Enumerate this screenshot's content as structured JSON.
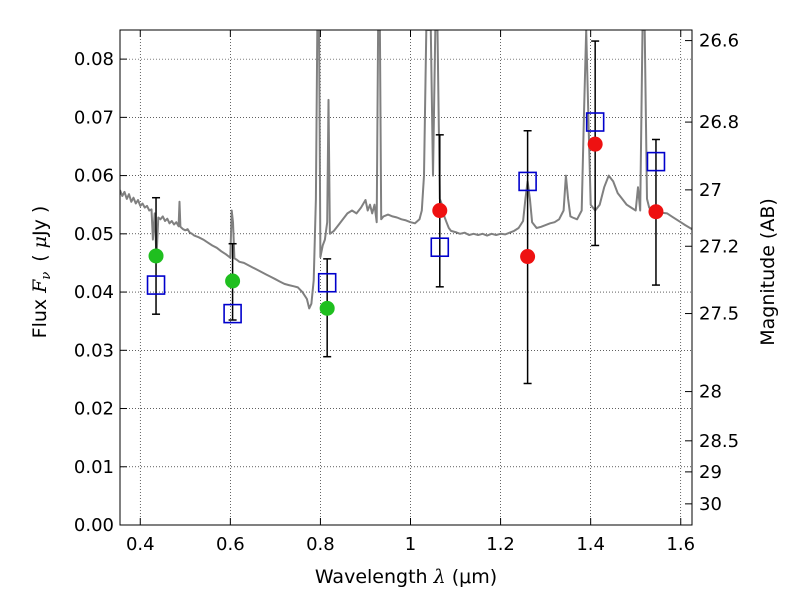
{
  "chart_data": {
    "type": "scatter",
    "xlabel": "Wavelength  λ (μm)",
    "xlabel_parts": {
      "prefix": "Wavelength  ",
      "symbol": "λ",
      "unit": " (μm)"
    },
    "ylabel": "Flux  Fν  ( μJy )",
    "ylabel_parts": {
      "prefix": "Flux  ",
      "symbol": "F",
      "subscript": "ν",
      "open": "(",
      "mu": "μ",
      "unit": "Jy )"
    },
    "y2label": "Magnitude (AB)",
    "xlim": [
      0.355,
      1.625
    ],
    "ylim": [
      0.0,
      0.085
    ],
    "x_ticks": [
      0.4,
      0.6,
      0.8,
      1.0,
      1.2,
      1.4,
      1.6
    ],
    "x_tick_labels": [
      "0.4",
      "0.6",
      "0.8",
      "1",
      "1.2",
      "1.4",
      "1.6"
    ],
    "y_ticks": [
      0.0,
      0.01,
      0.02,
      0.03,
      0.04,
      0.05,
      0.06,
      0.07,
      0.08
    ],
    "y_tick_labels": [
      "0.00",
      "0.01",
      "0.02",
      "0.03",
      "0.04",
      "0.05",
      "0.06",
      "0.07",
      "0.08"
    ],
    "y2_ticks": [
      {
        "mag": 26.6,
        "label": "26.6"
      },
      {
        "mag": 26.8,
        "label": "26.8"
      },
      {
        "mag": 27.0,
        "label": "27"
      },
      {
        "mag": 27.2,
        "label": "27.2"
      },
      {
        "mag": 27.5,
        "label": "27.5"
      },
      {
        "mag": 28.0,
        "label": "28"
      },
      {
        "mag": 28.5,
        "label": "28.5"
      },
      {
        "mag": 29.0,
        "label": "29"
      },
      {
        "mag": 30.0,
        "label": "30"
      }
    ],
    "grid": true,
    "series": [
      {
        "name": "model spectrum",
        "kind": "line",
        "color": "#808080",
        "points": [
          [
            0.355,
            0.0575
          ],
          [
            0.36,
            0.0565
          ],
          [
            0.365,
            0.0572
          ],
          [
            0.37,
            0.056
          ],
          [
            0.375,
            0.0568
          ],
          [
            0.38,
            0.0555
          ],
          [
            0.385,
            0.0562
          ],
          [
            0.39,
            0.0552
          ],
          [
            0.395,
            0.0558
          ],
          [
            0.4,
            0.0548
          ],
          [
            0.405,
            0.0552
          ],
          [
            0.41,
            0.0545
          ],
          [
            0.415,
            0.0548
          ],
          [
            0.42,
            0.054
          ],
          [
            0.425,
            0.0542
          ],
          [
            0.428,
            0.049
          ],
          [
            0.432,
            0.0535
          ],
          [
            0.436,
            0.046
          ],
          [
            0.44,
            0.0528
          ],
          [
            0.445,
            0.0525
          ],
          [
            0.45,
            0.053
          ],
          [
            0.455,
            0.0522
          ],
          [
            0.46,
            0.0526
          ],
          [
            0.465,
            0.0518
          ],
          [
            0.47,
            0.0522
          ],
          [
            0.475,
            0.0516
          ],
          [
            0.48,
            0.052
          ],
          [
            0.485,
            0.0513
          ],
          [
            0.487,
            0.0555
          ],
          [
            0.489,
            0.0512
          ],
          [
            0.495,
            0.0508
          ],
          [
            0.5,
            0.0506
          ],
          [
            0.505,
            0.0508
          ],
          [
            0.51,
            0.0502
          ],
          [
            0.515,
            0.05
          ],
          [
            0.52,
            0.0497
          ],
          [
            0.53,
            0.0494
          ],
          [
            0.54,
            0.049
          ],
          [
            0.55,
            0.0485
          ],
          [
            0.56,
            0.048
          ],
          [
            0.57,
            0.0476
          ],
          [
            0.58,
            0.047
          ],
          [
            0.59,
            0.0465
          ],
          [
            0.595,
            0.0462
          ],
          [
            0.6,
            0.0459
          ],
          [
            0.603,
            0.054
          ],
          [
            0.606,
            0.052
          ],
          [
            0.609,
            0.0458
          ],
          [
            0.615,
            0.0455
          ],
          [
            0.62,
            0.0452
          ],
          [
            0.63,
            0.045
          ],
          [
            0.64,
            0.0446
          ],
          [
            0.65,
            0.0442
          ],
          [
            0.66,
            0.0438
          ],
          [
            0.67,
            0.0434
          ],
          [
            0.68,
            0.043
          ],
          [
            0.69,
            0.0426
          ],
          [
            0.7,
            0.0422
          ],
          [
            0.71,
            0.0418
          ],
          [
            0.72,
            0.0414
          ],
          [
            0.73,
            0.0412
          ],
          [
            0.74,
            0.041
          ],
          [
            0.75,
            0.0408
          ],
          [
            0.76,
            0.04
          ],
          [
            0.77,
            0.0388
          ],
          [
            0.775,
            0.0372
          ],
          [
            0.78,
            0.038
          ],
          [
            0.785,
            0.042
          ],
          [
            0.79,
            0.056
          ],
          [
            0.793,
            0.085
          ],
          [
            0.797,
            0.085
          ],
          [
            0.8,
            0.046
          ],
          [
            0.805,
            0.048
          ],
          [
            0.81,
            0.049
          ],
          [
            0.815,
            0.052
          ],
          [
            0.818,
            0.073
          ],
          [
            0.821,
            0.05
          ],
          [
            0.83,
            0.0505
          ],
          [
            0.84,
            0.0515
          ],
          [
            0.85,
            0.0525
          ],
          [
            0.86,
            0.0535
          ],
          [
            0.87,
            0.054
          ],
          [
            0.88,
            0.0535
          ],
          [
            0.89,
            0.0545
          ],
          [
            0.9,
            0.0558
          ],
          [
            0.905,
            0.054
          ],
          [
            0.91,
            0.055
          ],
          [
            0.915,
            0.0535
          ],
          [
            0.92,
            0.055
          ],
          [
            0.925,
            0.052
          ],
          [
            0.928,
            0.085
          ],
          [
            0.932,
            0.085
          ],
          [
            0.935,
            0.0525
          ],
          [
            0.94,
            0.053
          ],
          [
            0.95,
            0.0533
          ],
          [
            0.96,
            0.053
          ],
          [
            0.97,
            0.0528
          ],
          [
            0.98,
            0.0525
          ],
          [
            0.99,
            0.0523
          ],
          [
            1.0,
            0.052
          ],
          [
            1.01,
            0.0518
          ],
          [
            1.02,
            0.0525
          ],
          [
            1.025,
            0.054
          ],
          [
            1.03,
            0.06
          ],
          [
            1.035,
            0.085
          ],
          [
            1.045,
            0.085
          ],
          [
            1.05,
            0.06
          ],
          [
            1.055,
            0.085
          ],
          [
            1.06,
            0.085
          ],
          [
            1.065,
            0.056
          ],
          [
            1.07,
            0.055
          ],
          [
            1.075,
            0.053
          ],
          [
            1.08,
            0.052
          ],
          [
            1.085,
            0.051
          ],
          [
            1.09,
            0.0505
          ],
          [
            1.1,
            0.0503
          ],
          [
            1.11,
            0.05
          ],
          [
            1.12,
            0.0502
          ],
          [
            1.13,
            0.0498
          ],
          [
            1.14,
            0.05
          ],
          [
            1.15,
            0.0498
          ],
          [
            1.16,
            0.05
          ],
          [
            1.17,
            0.0497
          ],
          [
            1.18,
            0.05
          ],
          [
            1.19,
            0.0498
          ],
          [
            1.2,
            0.05
          ],
          [
            1.21,
            0.0499
          ],
          [
            1.22,
            0.0502
          ],
          [
            1.23,
            0.0505
          ],
          [
            1.24,
            0.051
          ],
          [
            1.25,
            0.0522
          ],
          [
            1.255,
            0.056
          ],
          [
            1.26,
            0.059
          ],
          [
            1.265,
            0.056
          ],
          [
            1.27,
            0.052
          ],
          [
            1.28,
            0.051
          ],
          [
            1.29,
            0.0512
          ],
          [
            1.3,
            0.0515
          ],
          [
            1.31,
            0.0518
          ],
          [
            1.32,
            0.052
          ],
          [
            1.33,
            0.0525
          ],
          [
            1.34,
            0.054
          ],
          [
            1.345,
            0.06
          ],
          [
            1.35,
            0.056
          ],
          [
            1.355,
            0.053
          ],
          [
            1.36,
            0.0528
          ],
          [
            1.37,
            0.0525
          ],
          [
            1.38,
            0.054
          ],
          [
            1.385,
            0.07
          ],
          [
            1.39,
            0.085
          ],
          [
            1.395,
            0.07
          ],
          [
            1.4,
            0.055
          ],
          [
            1.41,
            0.054
          ],
          [
            1.42,
            0.055
          ],
          [
            1.43,
            0.058
          ],
          [
            1.44,
            0.06
          ],
          [
            1.45,
            0.059
          ],
          [
            1.46,
            0.057
          ],
          [
            1.47,
            0.056
          ],
          [
            1.48,
            0.055
          ],
          [
            1.49,
            0.0545
          ],
          [
            1.5,
            0.054
          ],
          [
            1.505,
            0.058
          ],
          [
            1.51,
            0.054
          ],
          [
            1.515,
            0.085
          ],
          [
            1.52,
            0.085
          ],
          [
            1.525,
            0.056
          ],
          [
            1.53,
            0.0545
          ],
          [
            1.54,
            0.054
          ],
          [
            1.55,
            0.0538
          ],
          [
            1.56,
            0.0536
          ],
          [
            1.57,
            0.0535
          ],
          [
            1.58,
            0.053
          ],
          [
            1.59,
            0.0525
          ],
          [
            1.6,
            0.052
          ],
          [
            1.61,
            0.0515
          ],
          [
            1.625,
            0.0508
          ]
        ]
      },
      {
        "name": "green measurements",
        "kind": "points",
        "marker": "circle",
        "color": "#1fbf1f",
        "x": [
          0.435,
          0.605,
          0.815
        ],
        "y": [
          0.0462,
          0.0419,
          0.0372
        ]
      },
      {
        "name": "red measurements",
        "kind": "points",
        "marker": "circle",
        "color": "#ee1111",
        "x": [
          1.065,
          1.26,
          1.41,
          1.545
        ],
        "y": [
          0.054,
          0.0461,
          0.0654,
          0.0538
        ]
      },
      {
        "name": "model photometry",
        "kind": "points",
        "marker": "open-square",
        "color": "#0000cc",
        "x": [
          0.435,
          0.605,
          0.815,
          1.065,
          1.26,
          1.41,
          1.545
        ],
        "y": [
          0.0412,
          0.0363,
          0.0416,
          0.0477,
          0.059,
          0.0692,
          0.0624
        ]
      },
      {
        "name": "error bars",
        "kind": "errorbars",
        "color": "#000000",
        "x": [
          0.435,
          0.605,
          0.815,
          1.065,
          1.26,
          1.41,
          1.545
        ],
        "lo": [
          0.0362,
          0.0352,
          0.0289,
          0.0409,
          0.0243,
          0.048,
          0.0412
        ],
        "hi": [
          0.0562,
          0.0483,
          0.0457,
          0.067,
          0.0677,
          0.0831,
          0.0662
        ]
      }
    ]
  }
}
